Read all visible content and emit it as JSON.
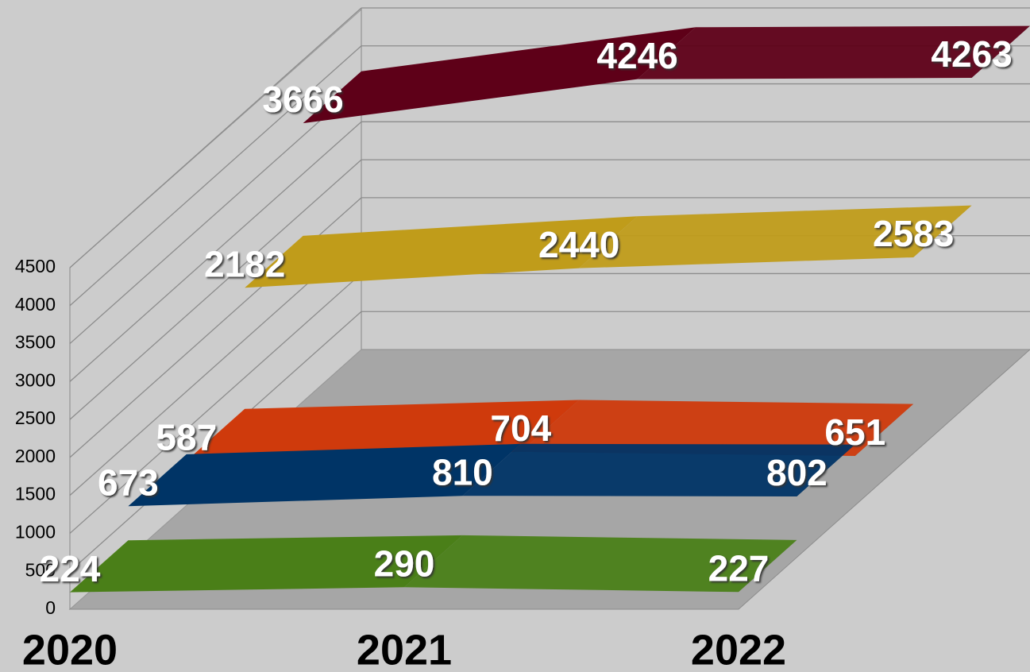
{
  "chart_data": {
    "type": "line",
    "categories": [
      "2020",
      "2021",
      "2022"
    ],
    "series": [
      {
        "color": "#4a7f18",
        "values": [
          224,
          290,
          227
        ]
      },
      {
        "color": "#003466",
        "values": [
          673,
          810,
          802
        ]
      },
      {
        "color": "#cf3a0c",
        "values": [
          587,
          704,
          651
        ]
      },
      {
        "color": "#c09c1a",
        "values": [
          2182,
          2440,
          2583
        ]
      },
      {
        "color": "#5e0018",
        "values": [
          3666,
          4246,
          4263
        ]
      }
    ],
    "ylim": [
      0,
      4500
    ],
    "yticks": [
      0,
      500,
      1000,
      1500,
      2000,
      2500,
      3000,
      3500,
      4000,
      4500
    ],
    "grid": true
  }
}
